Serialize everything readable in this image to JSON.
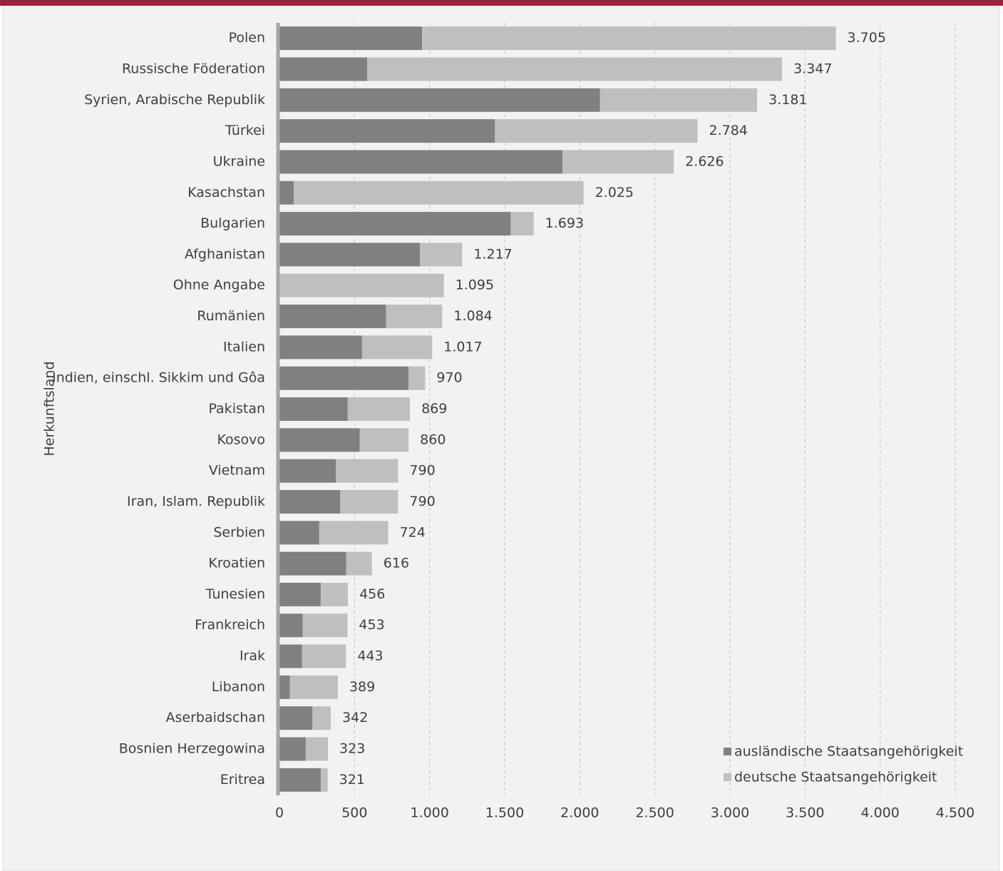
{
  "chart_data": {
    "type": "stacked-bar-horizontal",
    "y_axis_label": "Herkunftsland",
    "categories": [
      "Polen",
      "Russische Föderation",
      "Syrien, Arabische Republik",
      "Türkei",
      "Ukraine",
      "Kasachstan",
      "Bulgarien",
      "Afghanistan",
      "Ohne Angabe",
      "Rumänien",
      "Italien",
      "Indien, einschl. Sikkim und Gôa",
      "Pakistan",
      "Kosovo",
      "Vietnam",
      "Iran, Islam. Republik",
      "Serbien",
      "Kroatien",
      "Tunesien",
      "Frankreich",
      "Irak",
      "Libanon",
      "Aserbaidschan",
      "Bosnien Herzegowina",
      "Eritrea"
    ],
    "series": [
      {
        "name": "ausländische Staatsangehörigkeit",
        "color": "#808080",
        "values": [
          950,
          585,
          2135,
          1435,
          1885,
          95,
          1540,
          935,
          0,
          710,
          550,
          860,
          455,
          535,
          375,
          405,
          265,
          445,
          275,
          155,
          150,
          70,
          220,
          175,
          275
        ]
      },
      {
        "name": "deutsche Staatsangehörigkeit",
        "color": "#bfbfbf",
        "values": [
          2755,
          2762,
          1046,
          1349,
          741,
          1930,
          153,
          282,
          1095,
          374,
          467,
          110,
          414,
          325,
          415,
          385,
          459,
          171,
          181,
          298,
          293,
          319,
          122,
          148,
          46
        ]
      }
    ],
    "totals": {
      "values": [
        3705,
        3347,
        3181,
        2784,
        2626,
        2025,
        1693,
        1217,
        1095,
        1084,
        1017,
        970,
        869,
        860,
        790,
        790,
        724,
        616,
        456,
        453,
        443,
        389,
        342,
        323,
        321
      ],
      "value_labels": [
        "3.705",
        "3.347",
        "3.181",
        "2.784",
        "2.626",
        "2.025",
        "1.693",
        "1.217",
        "1.095",
        "1.084",
        "1.017",
        "970",
        "869",
        "860",
        "790",
        "790",
        "724",
        "616",
        "456",
        "453",
        "443",
        "389",
        "342",
        "323",
        "321"
      ]
    },
    "xlim": [
      0,
      4500
    ],
    "xticks": [
      0,
      500,
      {
        "value": 1000,
        "label": "1.000"
      },
      {
        "value": 1500,
        "label": "1.500"
      },
      {
        "value": 2000,
        "label": "2.000"
      },
      {
        "value": 2500,
        "label": "2.500"
      },
      {
        "value": 3000,
        "label": "3.000"
      },
      {
        "value": 3500,
        "label": "3.500"
      },
      {
        "value": 4000,
        "label": "4.000"
      },
      {
        "value": 4500,
        "label": "4.500"
      }
    ],
    "grid": true,
    "legend_position": "bottom-right"
  }
}
